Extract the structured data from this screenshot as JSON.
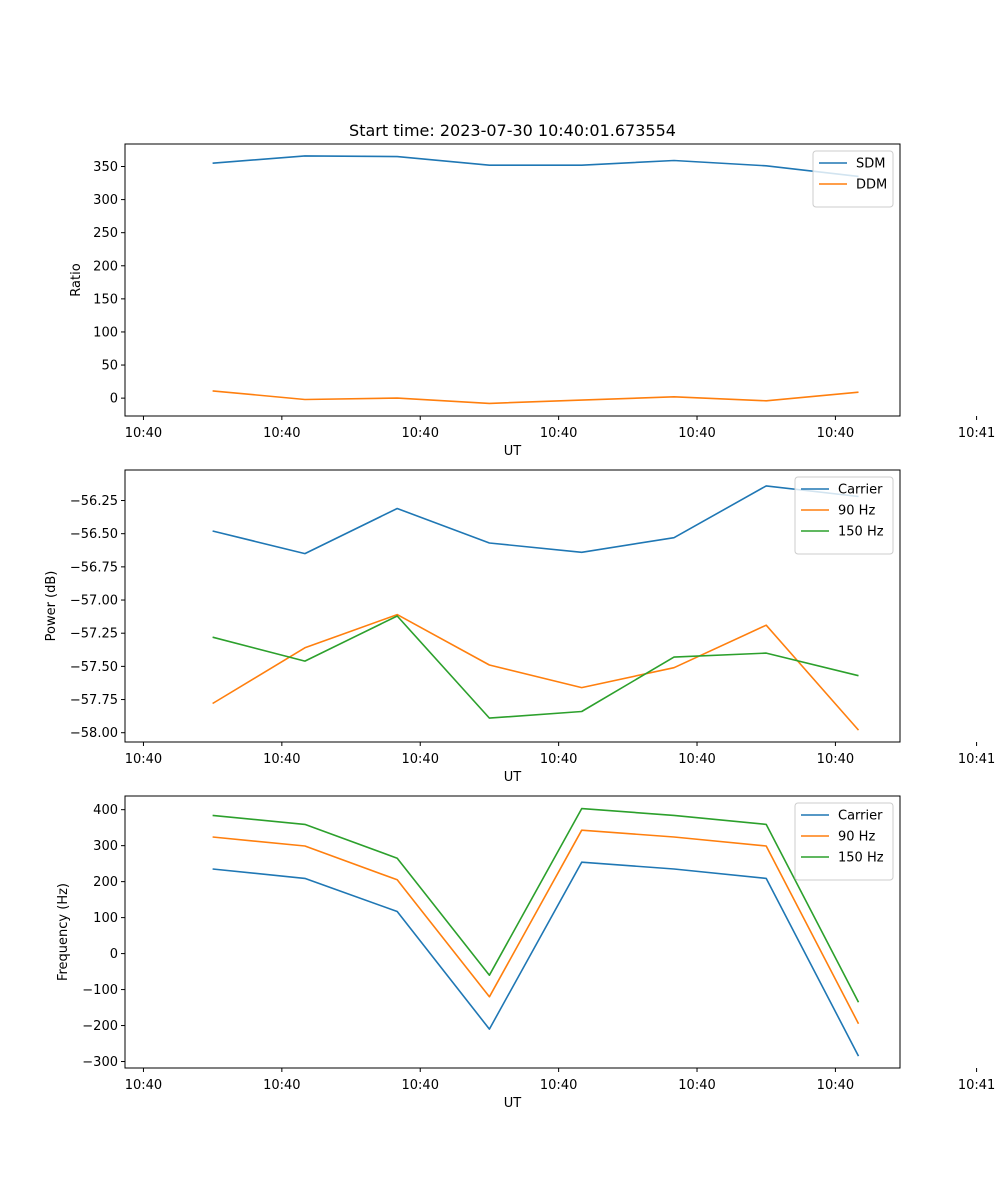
{
  "figure_title": "Start time: 2023-07-30 10:40:01.673554",
  "chart_data": [
    {
      "type": "line",
      "title": "Start time: 2023-07-30 10:40:01.673554",
      "xlabel": "UT",
      "ylabel": "Ratio",
      "ylim": [
        -27,
        384
      ],
      "yticks": [
        0,
        50,
        100,
        150,
        200,
        250,
        300,
        350
      ],
      "xlim": [
        -0.2,
        8.2
      ],
      "xtick_positions": [
        0,
        1.5,
        3,
        4.5,
        6,
        7.5,
        9.03
      ],
      "xtick_labels": [
        "10:40",
        "10:40",
        "10:40",
        "10:40",
        "10:40",
        "10:40",
        "10:41"
      ],
      "x": [
        0.75,
        1.75,
        2.75,
        3.75,
        4.75,
        5.75,
        6.75,
        7.75
      ],
      "legend_position": "upper right",
      "series": [
        {
          "name": "SDM",
          "color": "#1f77b4",
          "values": [
            355,
            366,
            365,
            352,
            352,
            359,
            351,
            335
          ]
        },
        {
          "name": "DDM",
          "color": "#ff7f0e",
          "values": [
            11,
            -2,
            0,
            -8,
            -3,
            2,
            -4,
            9
          ]
        }
      ]
    },
    {
      "type": "line",
      "title": "",
      "xlabel": "UT",
      "ylabel": "Power (dB)",
      "ylim": [
        -58.07,
        -56.02
      ],
      "yticks": [
        -58.0,
        -57.75,
        -57.5,
        -57.25,
        -57.0,
        -56.75,
        -56.5,
        -56.25
      ],
      "ytick_labels": [
        "−58.00",
        "−57.75",
        "−57.50",
        "−57.25",
        "−57.00",
        "−56.75",
        "−56.50",
        "−56.25"
      ],
      "xlim": [
        -0.2,
        8.2
      ],
      "xtick_positions": [
        0,
        1.5,
        3,
        4.5,
        6,
        7.5,
        9.03
      ],
      "xtick_labels": [
        "10:40",
        "10:40",
        "10:40",
        "10:40",
        "10:40",
        "10:40",
        "10:41"
      ],
      "x": [
        0.75,
        1.75,
        2.75,
        3.75,
        4.75,
        5.75,
        6.75,
        7.75
      ],
      "legend_position": "upper right",
      "series": [
        {
          "name": "Carrier",
          "color": "#1f77b4",
          "values": [
            -56.48,
            -56.65,
            -56.31,
            -56.57,
            -56.64,
            -56.53,
            -56.14,
            -56.22
          ]
        },
        {
          "name": "90 Hz",
          "color": "#ff7f0e",
          "values": [
            -57.78,
            -57.36,
            -57.11,
            -57.49,
            -57.66,
            -57.51,
            -57.19,
            -57.98
          ]
        },
        {
          "name": "150 Hz",
          "color": "#2ca02c",
          "values": [
            -57.28,
            -57.46,
            -57.12,
            -57.89,
            -57.84,
            -57.43,
            -57.4,
            -57.57
          ]
        }
      ]
    },
    {
      "type": "line",
      "title": "",
      "xlabel": "UT",
      "ylabel": "Frequency (Hz)",
      "ylim": [
        -318,
        438
      ],
      "yticks": [
        -300,
        -200,
        -100,
        0,
        100,
        200,
        300,
        400
      ],
      "ytick_labels": [
        "−300",
        "−200",
        "−100",
        "0",
        "100",
        "200",
        "300",
        "400"
      ],
      "xlim": [
        -0.2,
        8.2
      ],
      "xtick_positions": [
        0,
        1.5,
        3,
        4.5,
        6,
        7.5,
        9.03
      ],
      "xtick_labels": [
        "10:40",
        "10:40",
        "10:40",
        "10:40",
        "10:40",
        "10:40",
        "10:41"
      ],
      "x": [
        0.75,
        1.75,
        2.75,
        3.75,
        4.75,
        5.75,
        6.75,
        7.75
      ],
      "legend_position": "upper right",
      "series": [
        {
          "name": "Carrier",
          "color": "#1f77b4",
          "values": [
            235,
            209,
            117,
            -210,
            254,
            235,
            209,
            -285
          ]
        },
        {
          "name": "90 Hz",
          "color": "#ff7f0e",
          "values": [
            324,
            299,
            205,
            -120,
            343,
            324,
            299,
            -195
          ]
        },
        {
          "name": "150 Hz",
          "color": "#2ca02c",
          "values": [
            384,
            359,
            265,
            -60,
            403,
            384,
            359,
            -135
          ]
        }
      ]
    }
  ]
}
